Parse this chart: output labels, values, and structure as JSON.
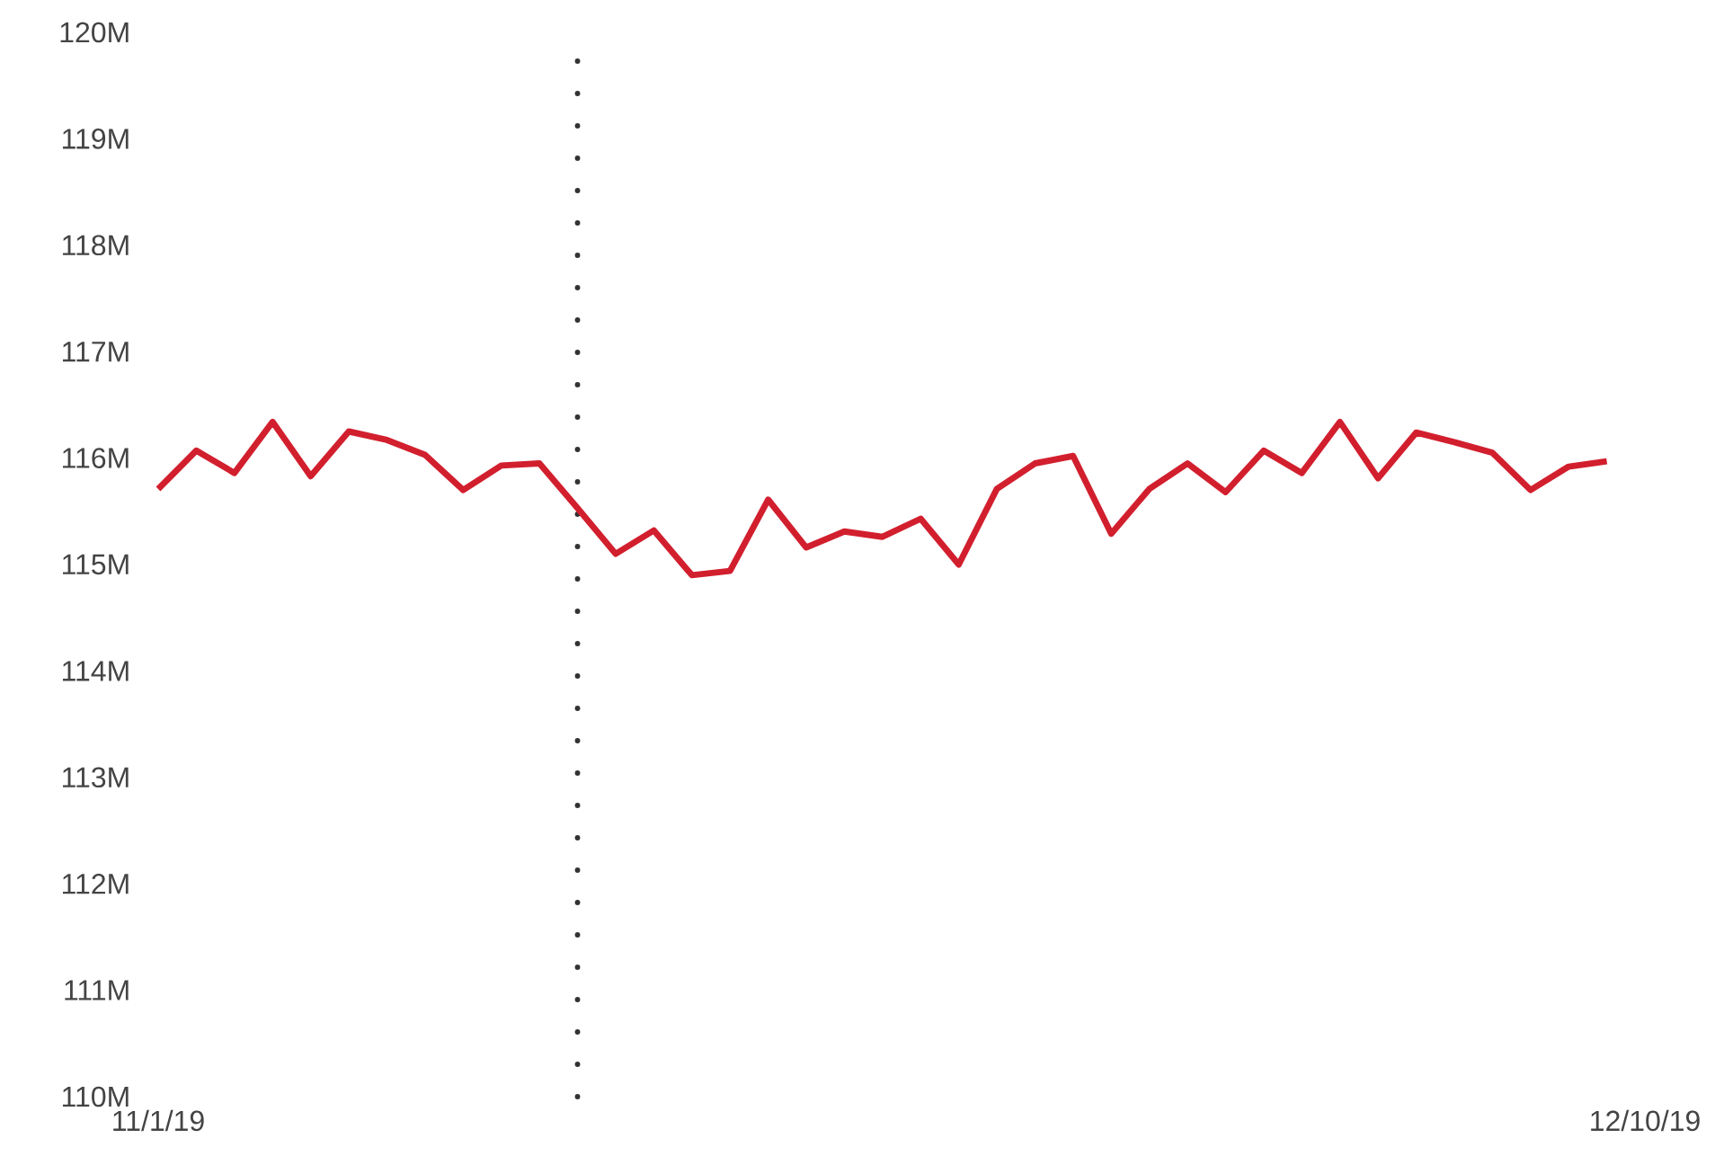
{
  "chart_data": {
    "type": "line",
    "x": [
      "2019-11-01",
      "2019-11-02",
      "2019-11-03",
      "2019-11-04",
      "2019-11-05",
      "2019-11-06",
      "2019-11-07",
      "2019-11-08",
      "2019-11-09",
      "2019-11-10",
      "2019-11-11",
      "2019-11-12",
      "2019-11-13",
      "2019-11-14",
      "2019-11-15",
      "2019-11-16",
      "2019-11-17",
      "2019-11-18",
      "2019-11-19",
      "2019-11-20",
      "2019-11-21",
      "2019-11-22",
      "2019-11-23",
      "2019-11-24",
      "2019-11-25",
      "2019-11-26",
      "2019-11-27",
      "2019-11-28",
      "2019-11-29",
      "2019-11-30",
      "2019-12-01",
      "2019-12-02",
      "2019-12-03",
      "2019-12-04",
      "2019-12-05",
      "2019-12-06",
      "2019-12-07",
      "2019-12-08",
      "2019-12-09"
    ],
    "series": [
      {
        "color": "#d21f2e",
        "line_style": "solid",
        "values": [
          115.71,
          116.07,
          115.86,
          116.34,
          115.83,
          116.25,
          116.17,
          116.03,
          115.7,
          115.93,
          115.95,
          115.53,
          115.1,
          115.32,
          114.9,
          114.94,
          115.61,
          115.16,
          115.31,
          115.26,
          115.43,
          115.0,
          115.71,
          115.95,
          116.02,
          115.29,
          115.71,
          115.95,
          115.68,
          116.07,
          115.86,
          116.34,
          115.81,
          116.24,
          116.15,
          116.05,
          115.7,
          115.92,
          115.97
        ]
      }
    ],
    "xlim": [
      "2019-11-01",
      "2019-12-10"
    ],
    "xticks": [
      {
        "value": "2019-11-01",
        "label": "11/1/19"
      },
      {
        "value": "2019-12-10",
        "label": "12/10/19"
      }
    ],
    "ylim": [
      110,
      120
    ],
    "yticks": [
      {
        "value": 110,
        "label": "110M"
      },
      {
        "value": 111,
        "label": "111M"
      },
      {
        "value": 112,
        "label": "112M"
      },
      {
        "value": 113,
        "label": "113M"
      },
      {
        "value": 114,
        "label": "114M"
      },
      {
        "value": 115,
        "label": "115M"
      },
      {
        "value": 116,
        "label": "116M"
      },
      {
        "value": 117,
        "label": "117M"
      },
      {
        "value": 118,
        "label": "118M"
      },
      {
        "value": 119,
        "label": "119M"
      },
      {
        "value": 120,
        "label": "120M"
      }
    ],
    "ref_lines": [
      {
        "axis": "x",
        "value": "2019-11-12",
        "color": "#333333",
        "line_style": "dotted"
      }
    ]
  }
}
